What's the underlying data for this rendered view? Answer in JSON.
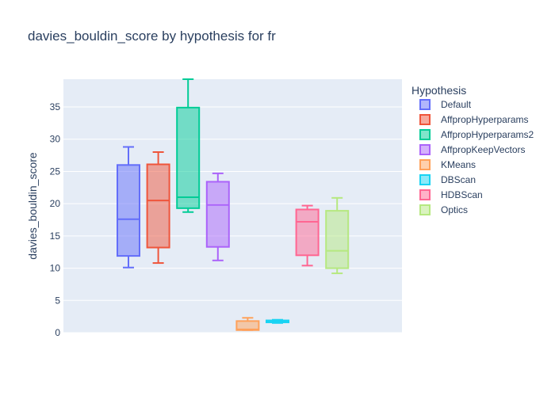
{
  "chart_data": {
    "type": "box",
    "title": "davies_bouldin_score by hypothesis for fr",
    "xlabel": "",
    "ylabel": "davies_bouldin_score",
    "ylim": [
      0,
      39.3
    ],
    "yticks": [
      0,
      5,
      10,
      15,
      20,
      25,
      30,
      35
    ],
    "grid": true,
    "legend": {
      "title": "Hypothesis",
      "position": "right"
    },
    "series": [
      {
        "name": "Default",
        "color": "#636efa",
        "min": 10.1,
        "q1": 11.9,
        "median": 17.6,
        "q3": 26.0,
        "max": 28.8
      },
      {
        "name": "AffpropHyperparams",
        "color": "#EF553B",
        "min": 10.8,
        "q1": 13.2,
        "median": 20.5,
        "q3": 26.1,
        "max": 28.0
      },
      {
        "name": "AffpropHyperparams2",
        "color": "#00cc96",
        "min": 18.7,
        "q1": 19.3,
        "median": 21.0,
        "q3": 34.9,
        "max": 39.3
      },
      {
        "name": "AffpropKeepVectors",
        "color": "#ab63fa",
        "min": 11.2,
        "q1": 13.3,
        "median": 19.8,
        "q3": 23.4,
        "max": 24.7
      },
      {
        "name": "KMeans",
        "color": "#FFA15A",
        "min": 0.4,
        "q1": 0.4,
        "median": 0.5,
        "q3": 1.8,
        "max": 2.3
      },
      {
        "name": "DBScan",
        "color": "#19d3f3",
        "min": 1.5,
        "q1": 1.6,
        "median": 1.7,
        "q3": 1.9,
        "max": 2.0
      },
      {
        "name": "HDBScan",
        "color": "#FF6692",
        "min": 10.4,
        "q1": 12.0,
        "median": 17.2,
        "q3": 19.1,
        "max": 19.7
      },
      {
        "name": "Optics",
        "color": "#B6E880",
        "min": 9.2,
        "q1": 10.0,
        "median": 12.7,
        "q3": 18.9,
        "max": 20.9
      }
    ]
  }
}
